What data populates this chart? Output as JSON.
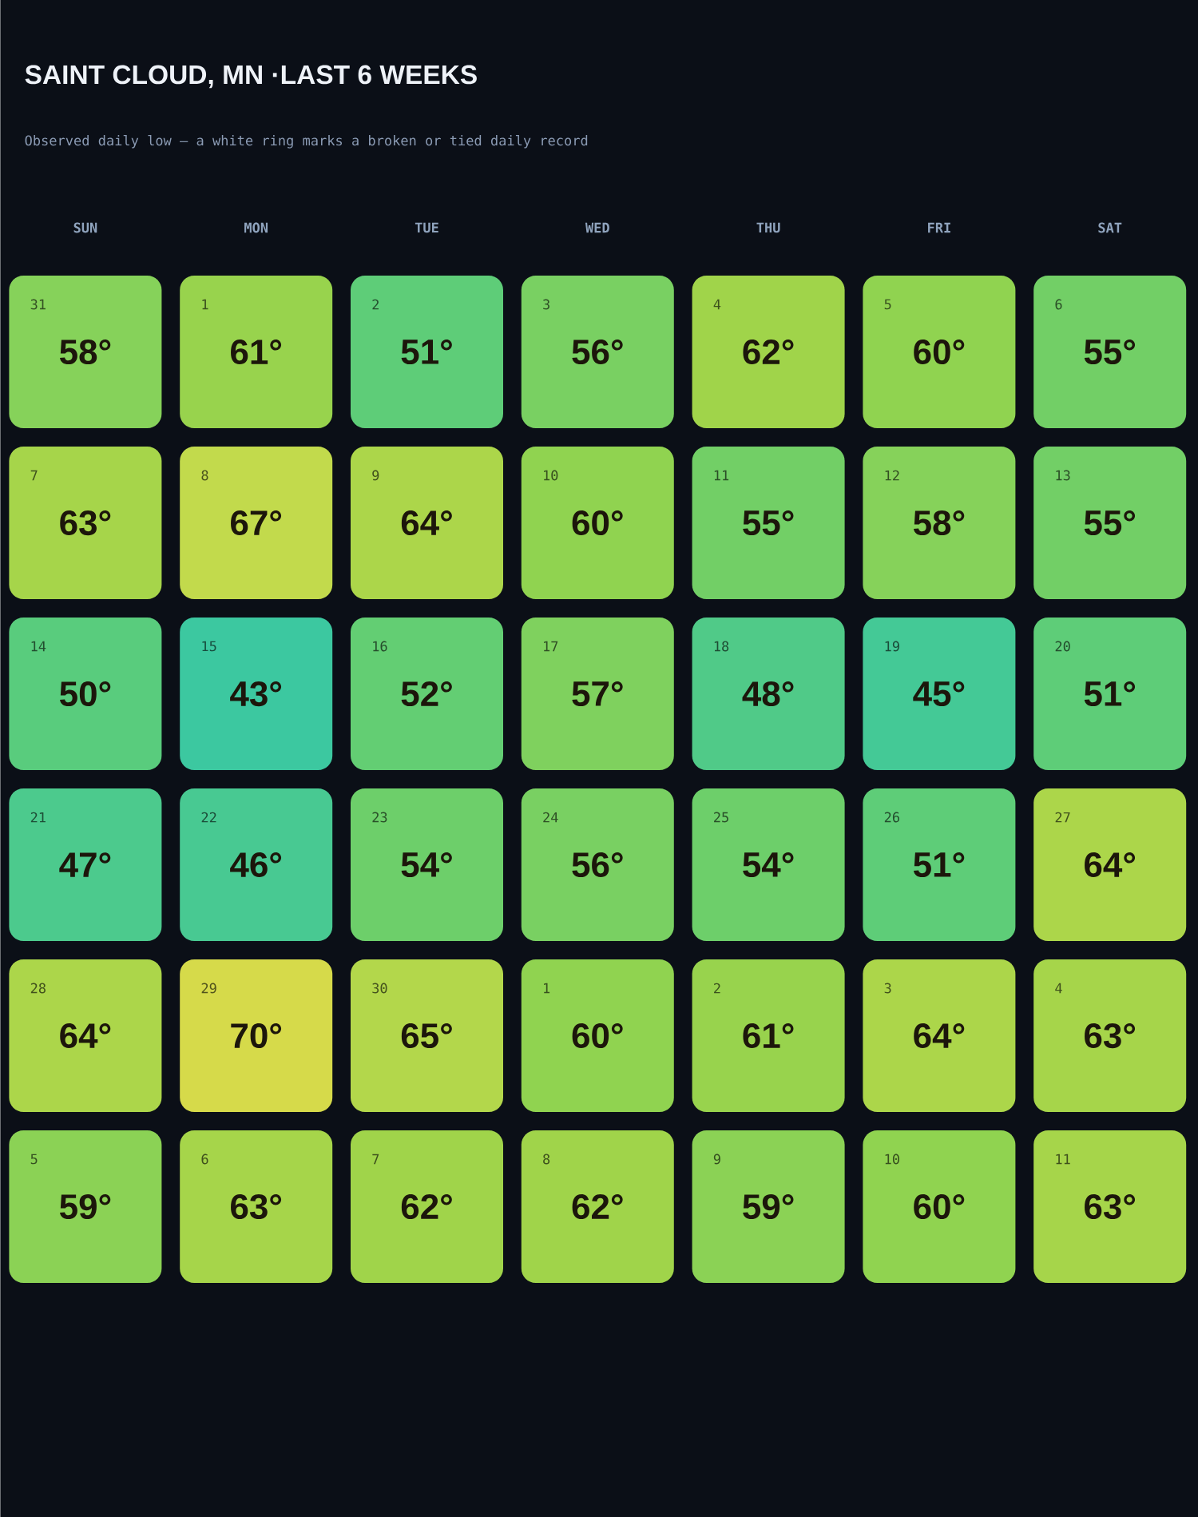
{
  "chart_data": {
    "type": "heatmap",
    "title": "SAINT CLOUD, MN ·LAST 6 WEEKS",
    "subtitle": "Observed daily low — a white ring marks a broken or tied daily record",
    "categories": [
      "SUN",
      "MON",
      "TUE",
      "WED",
      "THU",
      "FRI",
      "SAT"
    ],
    "y_categories": [
      null,
      null,
      null,
      null,
      null,
      null
    ],
    "cells": [
      [
        58,
        61,
        51,
        56,
        62,
        60,
        55
      ],
      [
        63,
        67,
        64,
        60,
        55,
        58,
        55
      ],
      [
        50,
        43,
        52,
        57,
        48,
        45,
        51
      ],
      [
        47,
        46,
        54,
        56,
        54,
        51,
        64
      ],
      [
        64,
        70,
        65,
        60,
        61,
        64,
        63
      ],
      [
        59,
        63,
        62,
        62,
        59,
        60,
        63
      ]
    ],
    "cell_labels": [
      [
        "58°",
        "61°",
        "51°",
        "56°",
        "62°",
        "60°",
        "55°"
      ],
      [
        "63°",
        "67°",
        "64°",
        "60°",
        "55°",
        "58°",
        "55°"
      ],
      [
        "50°",
        "43°",
        "52°",
        "57°",
        "48°",
        "45°",
        "51°"
      ],
      [
        "47°",
        "46°",
        "54°",
        "56°",
        "54°",
        "51°",
        "64°"
      ],
      [
        "64°",
        "70°",
        "65°",
        "60°",
        "61°",
        "64°",
        "63°"
      ],
      [
        "59°",
        "63°",
        "62°",
        "62°",
        "59°",
        "60°",
        "63°"
      ]
    ],
    "annotations": [
      "31",
      "1",
      "2",
      "3",
      "4",
      "5",
      "6",
      "7",
      "8",
      "9",
      "10",
      "11",
      "12",
      "13",
      "14",
      "15",
      "16",
      "17",
      "18",
      "19",
      "20",
      "21",
      "22",
      "23",
      "24",
      "25",
      "26",
      "27",
      "28",
      "29",
      "30",
      "1",
      "2",
      "3",
      "4",
      "5",
      "6",
      "7",
      "8",
      "9",
      "10",
      "11"
    ],
    "tick_labels": "x"
  }
}
